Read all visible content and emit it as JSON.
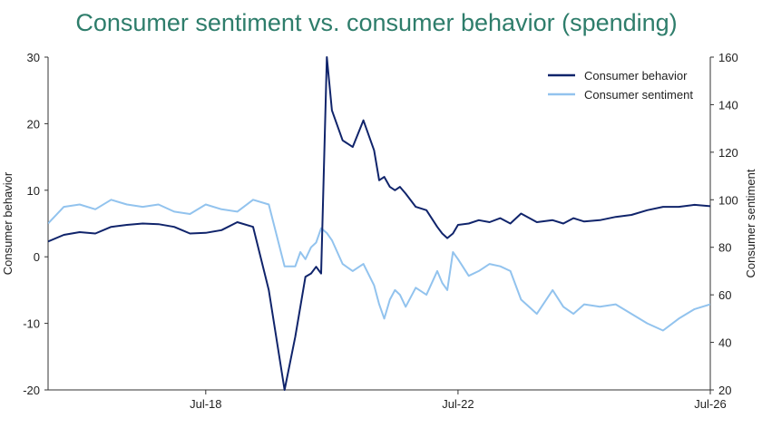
{
  "title": "Consumer sentiment vs. consumer behavior (spending)",
  "colors": {
    "behavior": "#10246b",
    "sentiment": "#92c3ee",
    "title": "#2e7d6b",
    "axis": "#333333"
  },
  "chart_data": {
    "type": "line",
    "title": "Consumer sentiment vs. consumer behavior (spending)",
    "y_left_label": "Consumer behavior",
    "y_right_label": "Consumer sentiment",
    "y_left_range": [
      -20,
      30
    ],
    "y_right_range": [
      20,
      160
    ],
    "y_left_ticks": [
      "30",
      "20",
      "10",
      "0",
      "-10",
      "-20"
    ],
    "y_right_ticks": [
      "160",
      "140",
      "120",
      "100",
      "80",
      "60",
      "40",
      "20"
    ],
    "x_range": [
      2016.0,
      2026.5
    ],
    "x_ticks": [
      {
        "x": 2018.5,
        "label": "Jul-18"
      },
      {
        "x": 2022.5,
        "label": "Jul-22"
      },
      {
        "x": 2026.5,
        "label": "Jul-26"
      }
    ],
    "grid": false,
    "legend_position": "top-right",
    "series": [
      {
        "name": "Consumer behavior",
        "axis": "left",
        "x": [
          2016.0,
          2016.25,
          2016.5,
          2016.75,
          2017.0,
          2017.25,
          2017.5,
          2017.75,
          2018.0,
          2018.25,
          2018.5,
          2018.75,
          2019.0,
          2019.25,
          2019.5,
          2019.75,
          2019.92,
          2020.0,
          2020.08,
          2020.17,
          2020.25,
          2020.33,
          2020.42,
          2020.5,
          2020.67,
          2020.83,
          2021.0,
          2021.17,
          2021.25,
          2021.33,
          2021.42,
          2021.5,
          2021.58,
          2021.67,
          2021.83,
          2022.0,
          2022.17,
          2022.25,
          2022.33,
          2022.42,
          2022.5,
          2022.67,
          2022.83,
          2023.0,
          2023.17,
          2023.33,
          2023.5,
          2023.75,
          2024.0,
          2024.17,
          2024.33,
          2024.5,
          2024.75,
          2025.0,
          2025.25,
          2025.5,
          2025.75,
          2026.0,
          2026.25,
          2026.5
        ],
        "values": [
          2.3,
          3.3,
          3.7,
          3.5,
          4.5,
          4.8,
          5.0,
          4.9,
          4.5,
          3.5,
          3.6,
          4.0,
          5.2,
          4.5,
          -5.0,
          -20.0,
          -12.0,
          -7.5,
          -3.0,
          -2.5,
          -1.5,
          -2.5,
          30.0,
          22.0,
          17.5,
          16.5,
          20.5,
          16.0,
          11.5,
          12.0,
          10.5,
          10.0,
          10.5,
          9.5,
          7.5,
          7.0,
          4.5,
          3.5,
          2.8,
          3.5,
          4.8,
          5.0,
          5.5,
          5.2,
          5.8,
          5.0,
          6.5,
          5.2,
          5.5,
          5.0,
          5.8,
          5.3,
          5.5,
          6.0,
          6.3,
          7.0,
          7.5,
          7.5,
          7.8,
          7.6
        ]
      },
      {
        "name": "Consumer sentiment",
        "axis": "right",
        "x": [
          2016.0,
          2016.25,
          2016.5,
          2016.75,
          2017.0,
          2017.25,
          2017.5,
          2017.75,
          2018.0,
          2018.25,
          2018.5,
          2018.75,
          2019.0,
          2019.25,
          2019.5,
          2019.75,
          2019.92,
          2020.0,
          2020.08,
          2020.17,
          2020.25,
          2020.33,
          2020.42,
          2020.5,
          2020.67,
          2020.83,
          2021.0,
          2021.17,
          2021.25,
          2021.33,
          2021.42,
          2021.5,
          2021.58,
          2021.67,
          2021.83,
          2022.0,
          2022.17,
          2022.25,
          2022.33,
          2022.42,
          2022.5,
          2022.67,
          2022.83,
          2023.0,
          2023.17,
          2023.33,
          2023.5,
          2023.75,
          2024.0,
          2024.17,
          2024.33,
          2024.5,
          2024.75,
          2025.0,
          2025.25,
          2025.5,
          2025.75,
          2026.0,
          2026.25,
          2026.5
        ],
        "values": [
          90.0,
          97.0,
          98.0,
          96.0,
          100.0,
          98.0,
          97.0,
          98.0,
          95.0,
          94.0,
          98.0,
          96.0,
          95.0,
          100.0,
          98.0,
          72.0,
          72.0,
          78.0,
          75.0,
          80.0,
          82.0,
          88.0,
          86.0,
          83.0,
          73.0,
          70.0,
          73.0,
          64.0,
          56.0,
          50.0,
          58.0,
          62.0,
          60.0,
          55.0,
          63.0,
          60.0,
          70.0,
          65.0,
          62.0,
          78.0,
          75.0,
          68.0,
          70.0,
          73.0,
          72.0,
          70.0,
          58.0,
          52.0,
          62.0,
          55.0,
          52.0,
          56.0,
          55.0,
          56.0,
          52.0,
          48.0,
          45.0,
          50.0,
          54.0,
          56.0
        ]
      }
    ]
  }
}
